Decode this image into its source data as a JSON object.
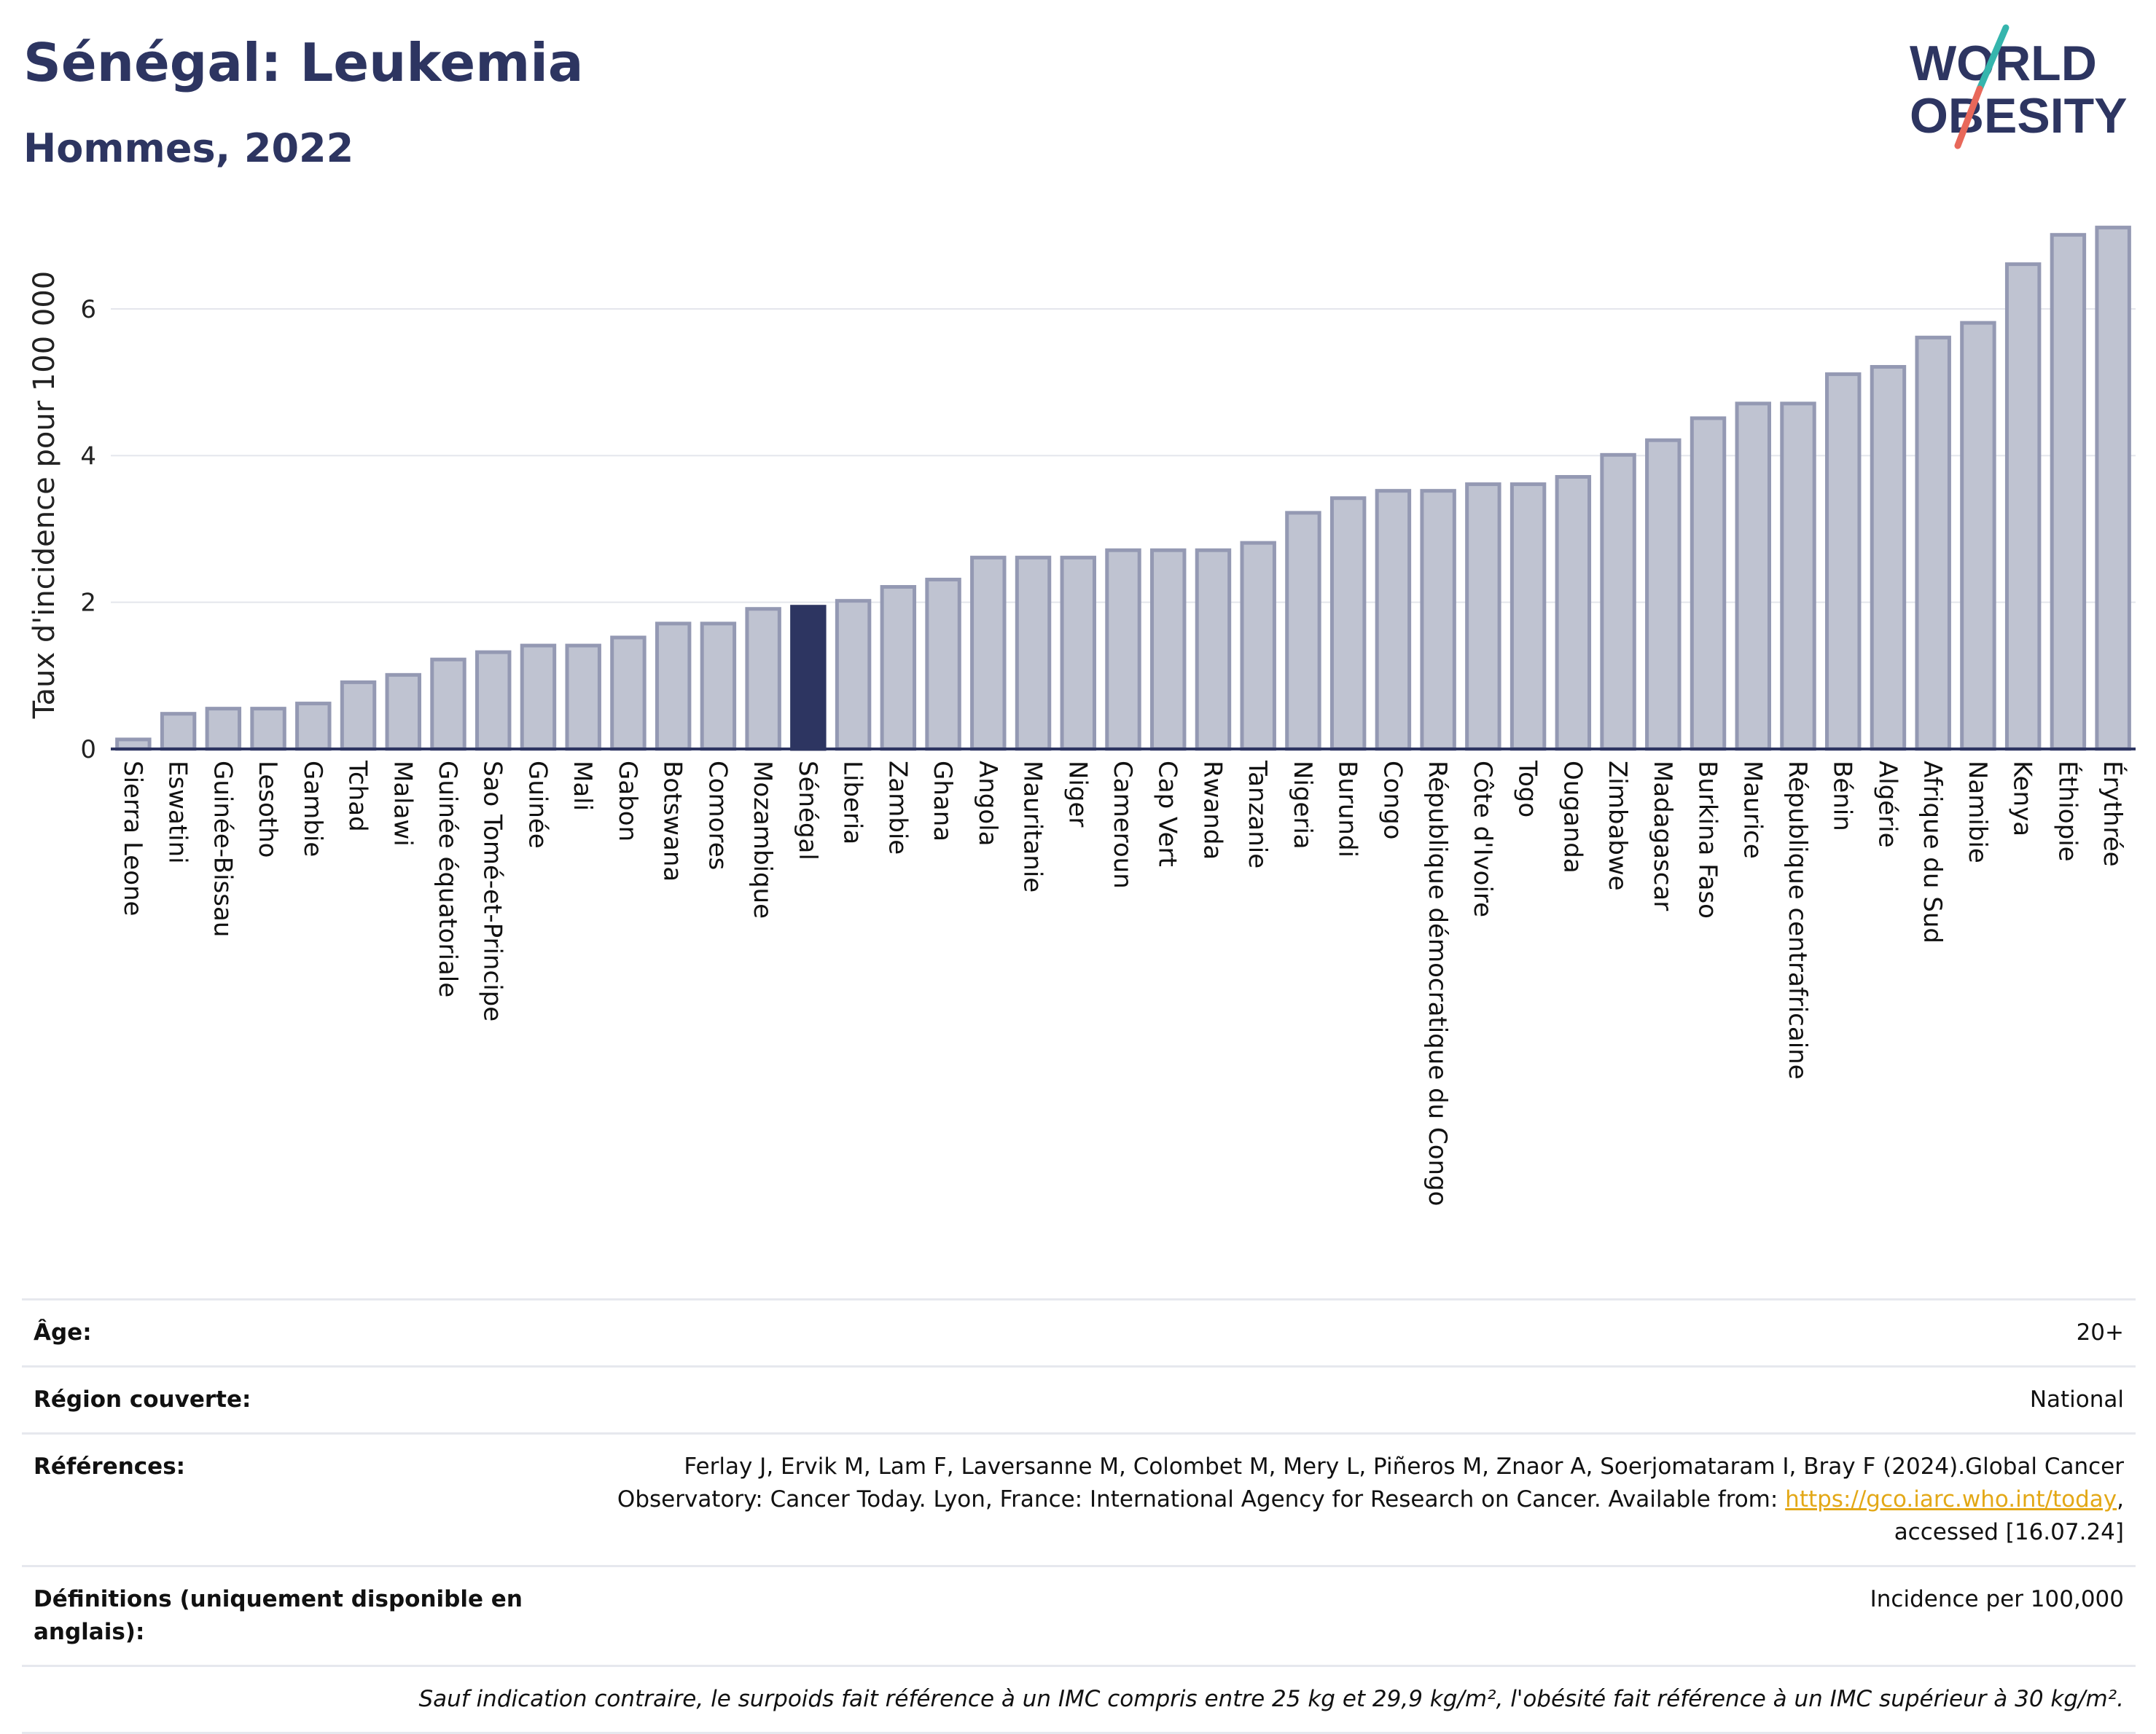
{
  "header": {
    "title": "Sénégal: Leukemia",
    "subtitle": "Hommes, 2022",
    "logo_line1": "WORLD",
    "logo_line2": "OBESITY"
  },
  "colors": {
    "bar": "#bfc3d1",
    "bar_stroke": "#9499b3",
    "highlight": "#2d3561",
    "title": "#2d3561",
    "link": "#e3a817",
    "logo_slash_teal": "#35b5ad",
    "logo_slash_red": "#e8685a"
  },
  "chart_data": {
    "type": "bar",
    "ylabel": "Taux d'incidence pour 100 000",
    "ylim": [
      0,
      7.2
    ],
    "yticks": [
      0,
      2,
      4,
      6
    ],
    "grid": true,
    "highlight": "Sénégal",
    "categories": [
      "Sierra Leone",
      "Eswatini",
      "Guinée-Bissau",
      "Lesotho",
      "Gambie",
      "Tchad",
      "Malawi",
      "Guinée équatoriale",
      "Sao Tomé-et-Principe",
      "Guinée",
      "Mali",
      "Gabon",
      "Botswana",
      "Comores",
      "Mozambique",
      "Sénégal",
      "Liberia",
      "Zambie",
      "Ghana",
      "Angola",
      "Mauritanie",
      "Niger",
      "Cameroun",
      "Cap Vert",
      "Rwanda",
      "Tanzanie",
      "Nigeria",
      "Burundi",
      "Congo",
      "République démocratique du Congo",
      "Côte d'Ivoire",
      "Togo",
      "Ouganda",
      "Zimbabwe",
      "Madagascar",
      "Burkina Faso",
      "Maurice",
      "République centrafricaine",
      "Bénin",
      "Algérie",
      "Afrique du Sud",
      "Namibie",
      "Kenya",
      "Éthiopie",
      "Érythrée"
    ],
    "values": [
      0.13,
      0.48,
      0.55,
      0.55,
      0.62,
      0.91,
      1.01,
      1.22,
      1.32,
      1.41,
      1.41,
      1.52,
      1.71,
      1.71,
      1.91,
      1.94,
      2.02,
      2.21,
      2.31,
      2.61,
      2.61,
      2.61,
      2.71,
      2.71,
      2.71,
      2.81,
      3.22,
      3.42,
      3.52,
      3.52,
      3.61,
      3.61,
      3.71,
      4.01,
      4.21,
      4.51,
      4.71,
      4.71,
      5.11,
      5.21,
      5.61,
      5.81,
      6.61,
      7.01,
      7.11
    ]
  },
  "info": {
    "age_label": "Âge:",
    "age_value": "20+",
    "region_label": "Région couverte:",
    "region_value": "National",
    "refs_label": "Références:",
    "refs_line1": "Ferlay J, Ervik M, Lam F, Laversanne M, Colombet M, Mery L, Piñeros M, Znaor A, Soerjomataram I, Bray F (2024).Global Cancer",
    "refs_line2_pre": "Observatory: Cancer Today. Lyon, France: International Agency for Research on Cancer. Available from: ",
    "refs_link": "https://gco.iarc.who.int/today",
    "refs_line2_post": ",",
    "refs_line3": "accessed [16.07.24]",
    "def_label": "Définitions (uniquement disponible en anglais):",
    "def_value": "Incidence per 100,000",
    "note": "Sauf indication contraire, le surpoids fait référence à un IMC compris entre 25 kg et 29,9 kg/m², l'obésité fait référence à un IMC supérieur à 30 kg/m²."
  }
}
